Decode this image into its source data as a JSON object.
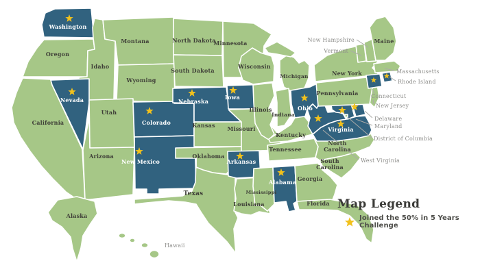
{
  "legend": {
    "title": "Map Legend",
    "item_label": "Joined the 50% in 5 Years Challenge"
  },
  "colors": {
    "state_default": "#a6c787",
    "state_joined": "#31627f",
    "star": "#f2c11c",
    "label_dark": "#3e3e37",
    "label_light": "#ffffff",
    "callout_text": "#8f8f8c",
    "leader_line": "#ababa8",
    "legend_title": "#3b3b38",
    "legend_text": "#4e4e4a",
    "background": "#ffffff"
  },
  "map": {
    "states": [
      {
        "id": "ca",
        "name": "California",
        "joined": false,
        "star": false,
        "label": "inside"
      },
      {
        "id": "or",
        "name": "Oregon",
        "joined": false,
        "star": false,
        "label": "inside"
      },
      {
        "id": "wa",
        "name": "Washington",
        "joined": true,
        "star": true,
        "label": "inside"
      },
      {
        "id": "id",
        "name": "Idaho",
        "joined": false,
        "star": false,
        "label": "inside"
      },
      {
        "id": "mt",
        "name": "Montana",
        "joined": false,
        "star": false,
        "label": "inside"
      },
      {
        "id": "wy",
        "name": "Wyoming",
        "joined": false,
        "star": false,
        "label": "inside"
      },
      {
        "id": "nv",
        "name": "Nevada",
        "joined": true,
        "star": true,
        "label": "inside"
      },
      {
        "id": "ut",
        "name": "Utah",
        "joined": false,
        "star": false,
        "label": "inside"
      },
      {
        "id": "az",
        "name": "Arizona",
        "joined": false,
        "star": false,
        "label": "inside"
      },
      {
        "id": "co",
        "name": "Colorado",
        "joined": true,
        "star": true,
        "label": "inside"
      },
      {
        "id": "nm",
        "name": "New Mexico",
        "joined": true,
        "star": true,
        "label": "inside"
      },
      {
        "id": "nd",
        "name": "North Dakota",
        "joined": false,
        "star": false,
        "label": "inside"
      },
      {
        "id": "sd",
        "name": "South Dakota",
        "joined": false,
        "star": false,
        "label": "inside"
      },
      {
        "id": "ne",
        "name": "Nebraska",
        "joined": true,
        "star": true,
        "label": "inside"
      },
      {
        "id": "ks",
        "name": "Kansas",
        "joined": false,
        "star": false,
        "label": "inside"
      },
      {
        "id": "ok",
        "name": "Oklahoma",
        "joined": false,
        "star": false,
        "label": "inside"
      },
      {
        "id": "tx",
        "name": "Texas",
        "joined": false,
        "star": false,
        "label": "inside"
      },
      {
        "id": "mn",
        "name": "Minnesota",
        "joined": false,
        "star": false,
        "label": "inside"
      },
      {
        "id": "ia",
        "name": "Iowa",
        "joined": true,
        "star": true,
        "label": "inside"
      },
      {
        "id": "mo",
        "name": "Missouri",
        "joined": false,
        "star": false,
        "label": "inside"
      },
      {
        "id": "ar",
        "name": "Arkansas",
        "joined": true,
        "star": true,
        "label": "inside"
      },
      {
        "id": "la",
        "name": "Louisiana",
        "joined": false,
        "star": false,
        "label": "inside"
      },
      {
        "id": "wi",
        "name": "Wisconsin",
        "joined": false,
        "star": false,
        "label": "inside"
      },
      {
        "id": "il",
        "name": "Illinois",
        "joined": false,
        "star": false,
        "label": "inside"
      },
      {
        "id": "mi",
        "name": "Michigan",
        "joined": false,
        "star": false,
        "label": "inside"
      },
      {
        "id": "in",
        "name": "Indiana",
        "joined": false,
        "star": false,
        "label": "inside"
      },
      {
        "id": "oh",
        "name": "Ohio",
        "joined": true,
        "star": true,
        "label": "inside"
      },
      {
        "id": "ky",
        "name": "Kentucky",
        "joined": false,
        "star": false,
        "label": "inside"
      },
      {
        "id": "tn",
        "name": "Tennessee",
        "joined": false,
        "star": false,
        "label": "inside"
      },
      {
        "id": "ms",
        "name": "Mississippi",
        "joined": false,
        "star": false,
        "label": "inside"
      },
      {
        "id": "al",
        "name": "Alabama",
        "joined": true,
        "star": true,
        "label": "inside"
      },
      {
        "id": "ga",
        "name": "Georgia",
        "joined": false,
        "star": false,
        "label": "inside"
      },
      {
        "id": "fl",
        "name": "Florida",
        "joined": false,
        "star": false,
        "label": "inside"
      },
      {
        "id": "sc",
        "name": "South Carolina",
        "joined": false,
        "star": false,
        "label": "inside"
      },
      {
        "id": "nc",
        "name": "North Carolina",
        "joined": false,
        "star": false,
        "label": "inside"
      },
      {
        "id": "va",
        "name": "Virginia",
        "joined": true,
        "star": true,
        "label": "inside"
      },
      {
        "id": "wv",
        "name": "West Virginia",
        "joined": true,
        "star": true,
        "label": "callout"
      },
      {
        "id": "md",
        "name": "Maryland",
        "joined": true,
        "star": true,
        "label": "callout"
      },
      {
        "id": "de",
        "name": "Delaware",
        "joined": true,
        "star": true,
        "label": "callout"
      },
      {
        "id": "dc",
        "name": "District of Columbia",
        "joined": false,
        "star": false,
        "label": "callout"
      },
      {
        "id": "nj",
        "name": "New Jersey",
        "joined": false,
        "star": false,
        "label": "callout"
      },
      {
        "id": "pa",
        "name": "Pennsylvania",
        "joined": false,
        "star": false,
        "label": "inside"
      },
      {
        "id": "ny",
        "name": "New York",
        "joined": false,
        "star": false,
        "label": "inside"
      },
      {
        "id": "vt",
        "name": "Vermont",
        "joined": false,
        "star": false,
        "label": "callout"
      },
      {
        "id": "nh",
        "name": "New Hampshire",
        "joined": false,
        "star": false,
        "label": "callout"
      },
      {
        "id": "me",
        "name": "Maine",
        "joined": false,
        "star": false,
        "label": "inside"
      },
      {
        "id": "ma",
        "name": "Massachusetts",
        "joined": false,
        "star": false,
        "label": "callout"
      },
      {
        "id": "ct",
        "name": "Connecticut",
        "joined": true,
        "star": true,
        "label": "callout"
      },
      {
        "id": "ri",
        "name": "Rhode Island",
        "joined": true,
        "star": true,
        "label": "callout"
      },
      {
        "id": "ak",
        "name": "Alaska",
        "joined": false,
        "star": false,
        "label": "inside"
      },
      {
        "id": "hi",
        "name": "Hawaii",
        "joined": false,
        "star": false,
        "label": "plain"
      }
    ]
  }
}
